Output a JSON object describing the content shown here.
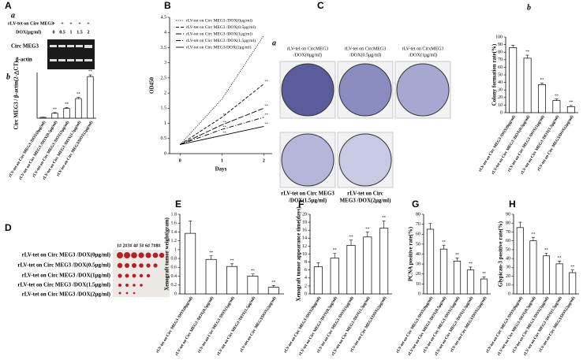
{
  "figure": {
    "panel_labels": [
      "A",
      "B",
      "C",
      "D",
      "E",
      "F",
      "G",
      "H"
    ],
    "sub_labels": [
      "a",
      "b",
      "a",
      "b"
    ],
    "gel": {
      "construct": "rLV-tet on Cire MEG3",
      "plus": [
        "+",
        "+",
        "+",
        "+",
        "+"
      ],
      "dox_label": "DOX(μg/ml)",
      "doses": [
        0,
        0.5,
        1,
        1.5,
        2
      ],
      "rows": [
        "Circ MEG3",
        "β-actin"
      ]
    },
    "colony_captions": [
      [
        "rLV-tet on CircMEG3",
        "/DOX(0μg/ml)"
      ],
      [
        "rLV-tet on CircMEG3",
        "/DOX(0.5μg/ml)"
      ],
      [
        "rLV-tet on CirxMEG3",
        "/DOX(1μg/ml)"
      ],
      [
        "rLV-tet on Circ MEG3",
        "/DOX(1.5μg/ml)"
      ],
      [
        "rLV-tet on Circ",
        "MEG3 /DOX(2μg/ml)"
      ]
    ],
    "tumor": {
      "ids": "1# 2#3# 4# 5# 6# 7#8#",
      "rows": [
        "rLV-tet on Circ MEG3 /DOX(0μg/ml)",
        "rLV-tet on Circ MEG3 /DOX(0.5μg/ml)",
        "rLV-tet on Circ MEG3 /DOX(1μg/ml)",
        "rLV-tet on Circ MEG3 /DOX(1.5μg/ml)",
        "rLV-tet on Circ MEG3 /DOX(2μg/ml)"
      ]
    }
  },
  "chart_data": [
    {
      "type": "bar",
      "ylabel": "Circ MEG3 / β-actin(2-△CT)",
      "color": "#ffffff",
      "categories": [
        "rLV-tet on Circ MEG3 /DOX(0μg/ml)",
        "rLV-tet on Circ MEG3 /DOX(0.5μg/ml)",
        "rLV-tet on Circ MEG3 /DOX(1μg/ml)",
        "rLV-tet on Circ MEG3 /DOX(1.5μg/ml)",
        "rLV-tet on Circ MEG3/DOX(2μg/ml)"
      ],
      "values": [
        0.1,
        0.6,
        1.2,
        2.4,
        5.1
      ],
      "errors": [
        0.03,
        0.08,
        0.1,
        0.15,
        0.2
      ],
      "significance": [
        null,
        "**",
        "**",
        "**",
        "**"
      ],
      "ylim": [
        0,
        5.6
      ]
    },
    {
      "type": "line",
      "xlabel": "Days",
      "ylabel": "OD450",
      "x": [
        0,
        1,
        2
      ],
      "xlim": [
        -0.25,
        2.2
      ],
      "xticks": [
        0,
        1,
        2
      ],
      "ylim": [
        0,
        4.5
      ],
      "yticks": [
        0,
        0.5,
        1,
        1.5,
        2,
        2.5,
        3,
        3.5,
        4,
        4.5
      ],
      "legend": "upper-left",
      "series": [
        {
          "name": "rLV-tet on Circ MEG3 /DOX(0μg/ml)",
          "color": "#000000",
          "style": "dotted",
          "values": [
            0.3,
            1.8,
            3.9
          ],
          "significance": [
            null,
            null,
            null
          ]
        },
        {
          "name": "rLV-tet on Circ MEG3 /DOX(0.5μg/ml)",
          "color": "#000000",
          "style": "dashed",
          "values": [
            0.3,
            1.2,
            2.3
          ],
          "significance": [
            null,
            "**",
            "**"
          ]
        },
        {
          "name": "rLV-tet on Circ MEG3 /DOX(1μg/ml)",
          "color": "#000000",
          "style": "long-dashed",
          "values": [
            0.3,
            0.95,
            1.5
          ],
          "significance": [
            null,
            "**",
            "**"
          ]
        },
        {
          "name": "rLV-tet on Circ MEG3 /DOX(1.5μg/ml)",
          "color": "#000000",
          "style": "dash-dot",
          "values": [
            0.3,
            0.8,
            1.2
          ],
          "significance": [
            null,
            "**",
            "**"
          ]
        },
        {
          "name": "rLV-tet on Circ MEG3/DOX(2μg/ml)",
          "color": "#000000",
          "style": "solid",
          "values": [
            0.3,
            0.6,
            0.9
          ],
          "significance": [
            null,
            "**",
            "**"
          ]
        }
      ]
    },
    {
      "type": "bar",
      "ylabel": "Colony formation rate(%)",
      "color": "#ffffff",
      "categories": [
        "rLV-tet on Circ MEG3 /DOX(0μg/ml)",
        "rLV-tet on Circ MEG3 /DOX(0.5μg/ml)",
        "rLV-tet on Circ MEG3 /DOX(1μg/ml)",
        "rLV-tet on Circ MEG3 /DOX(1.5μg/ml)",
        "rLV-tet on Circ MEG3/DOX(2μg/ml)"
      ],
      "values": [
        86,
        72,
        37,
        16,
        8
      ],
      "errors": [
        3,
        4,
        2,
        2,
        1.5
      ],
      "significance": [
        null,
        "**",
        "**",
        "**",
        "**"
      ],
      "ylim": [
        0,
        100
      ],
      "yticks": [
        0,
        10,
        20,
        30,
        40,
        50,
        60,
        70,
        80,
        90,
        100
      ]
    },
    {
      "type": "bar",
      "ylabel": "Xenograft tumor weight(gram)",
      "color": "#ffffff",
      "categories": [
        "rLV-tet on Circ MEG3 /DOX(0μg/ml)",
        "rLV-tet on Circ MEG3 /DOX(0.5μg/ml)",
        "rLV-tet on Circ MEG3 /DOX(1μg/ml)",
        "rLV-tet on Circ MEG3 /DOX(1.5μg/ml)",
        "rLV-tet on Circ MEG3/DOX(2μg/ml)"
      ],
      "values": [
        1.37,
        0.78,
        0.62,
        0.4,
        0.15
      ],
      "errors": [
        0.28,
        0.08,
        0.06,
        0.05,
        0.04
      ],
      "significance": [
        null,
        "**",
        "**",
        "**",
        "**"
      ],
      "ylim": [
        0,
        1.8
      ],
      "yticks": [
        0,
        0.2,
        0.4,
        0.6,
        0.8,
        1,
        1.2,
        1.4,
        1.6,
        1.8
      ]
    },
    {
      "type": "bar",
      "ylabel": "Xenograft tumor appearance time(days)",
      "color": "#ffffff",
      "categories": [
        "rLV-tet on Circ MEG3 /DOX(0μg/ml)",
        "rLV-tet on Circ MEG3 /DOX(0.5μg/ml)",
        "rLV-tet on Circ MEG3 /DOX(1μg/ml)",
        "rLV-tet on Circ MEG3 /DOX(1.5μg/ml)",
        "rLV-tet on Circ MEG3/DOX(2μg/ml)"
      ],
      "values": [
        6.8,
        9,
        12.2,
        14.3,
        16.5
      ],
      "errors": [
        1,
        1.2,
        1.3,
        1.2,
        1.8
      ],
      "significance": [
        null,
        "**",
        "**",
        "**",
        "**"
      ],
      "ylim": [
        0,
        20
      ],
      "yticks": [
        0,
        2,
        4,
        6,
        8,
        10,
        12,
        14,
        16,
        18,
        20
      ]
    },
    {
      "type": "bar",
      "ylabel": "PCNA positive rate(%)",
      "color": "#ffffff",
      "categories": [
        "rLV-tet on Circ MEG3 /DOX(0μg/ml)",
        "rLV-tet on Circ MEG3 /DOX(0.5μg/ml)",
        "rLV-tet on Circ MEG3 /DOX(1μg/ml)",
        "rLV-tet on Circ MEG3 /DOX(1.5μg/ml)",
        "rLV-tet on Circ MEG3/DOX(2μg/ml)"
      ],
      "values": [
        65,
        45,
        33,
        24,
        15
      ],
      "errors": [
        6,
        4,
        3,
        3,
        2
      ],
      "significance": [
        null,
        "**",
        "**",
        "**",
        "**"
      ],
      "ylim": [
        0,
        80
      ],
      "yticks": [
        0,
        10,
        20,
        30,
        40,
        50,
        60,
        70,
        80
      ]
    },
    {
      "type": "bar",
      "ylabel": "Glypican-3 positive rate(%)",
      "color": "#ffffff",
      "categories": [
        "rLV-tet on Circ MEG3 /DOX(0μg/ml)",
        "rLV-tet on Circ MEG3 /DOX(0.5μg/ml)",
        "rLV-tet on Circ MEG3 /DOX(1μg/ml)",
        "rLV-tet on Circ MEG3 /DOX(1.5μg/ml)",
        "rLV-tet on Circ MEG3/DOX(2μg/ml)"
      ],
      "values": [
        75,
        60,
        43,
        34,
        24
      ],
      "errors": [
        6,
        4,
        3,
        3,
        3
      ],
      "significance": [
        null,
        "**",
        "**",
        "**",
        "**"
      ],
      "ylim": [
        0,
        90
      ],
      "yticks": [
        0,
        10,
        20,
        30,
        40,
        50,
        60,
        70,
        80,
        90
      ]
    }
  ]
}
